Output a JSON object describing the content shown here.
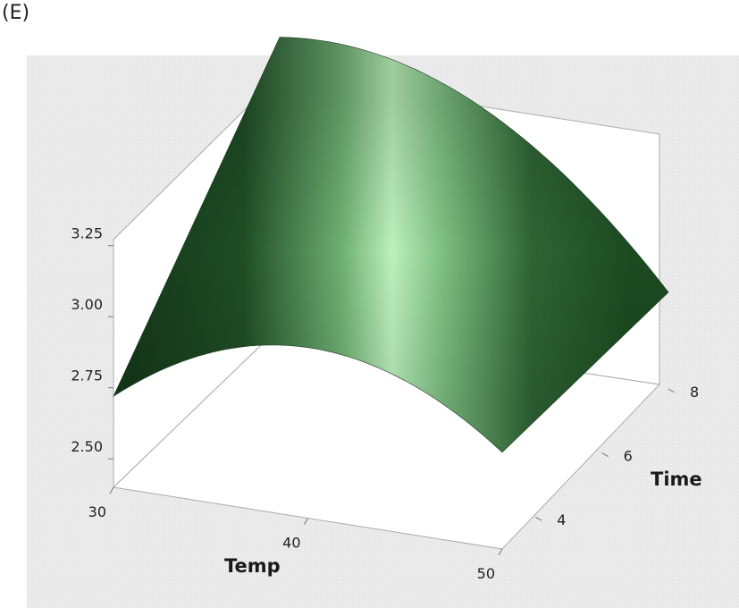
{
  "panel_label": "(E)",
  "chart_data": {
    "type": "surface",
    "title": "",
    "xlabel": "Temp",
    "ylabel": "Time",
    "zlabel": "",
    "x_ticks": [
      "30",
      "40",
      "50"
    ],
    "y_ticks": [
      "4",
      "6",
      "8"
    ],
    "z_ticks": [
      "2.50",
      "2.75",
      "3.00",
      "3.25"
    ],
    "xlim": [
      30,
      50
    ],
    "ylim": [
      3,
      8
    ],
    "zlim": [
      2.4,
      3.5
    ],
    "surface_color": "#3f7a44",
    "highlight_color": "#c8f5c8",
    "background_color": "#e9e9e9",
    "edge_points": {
      "back_edge_time_8": [
        {
          "temp": 30,
          "z": 3.42
        },
        {
          "temp": 40,
          "z": 3.3
        },
        {
          "temp": 50,
          "z": 2.74
        }
      ],
      "front_edge_time_3": [
        {
          "temp": 30,
          "z": 2.72
        },
        {
          "temp": 40,
          "z": 3.0
        },
        {
          "temp": 50,
          "z": 2.74
        }
      ]
    }
  }
}
